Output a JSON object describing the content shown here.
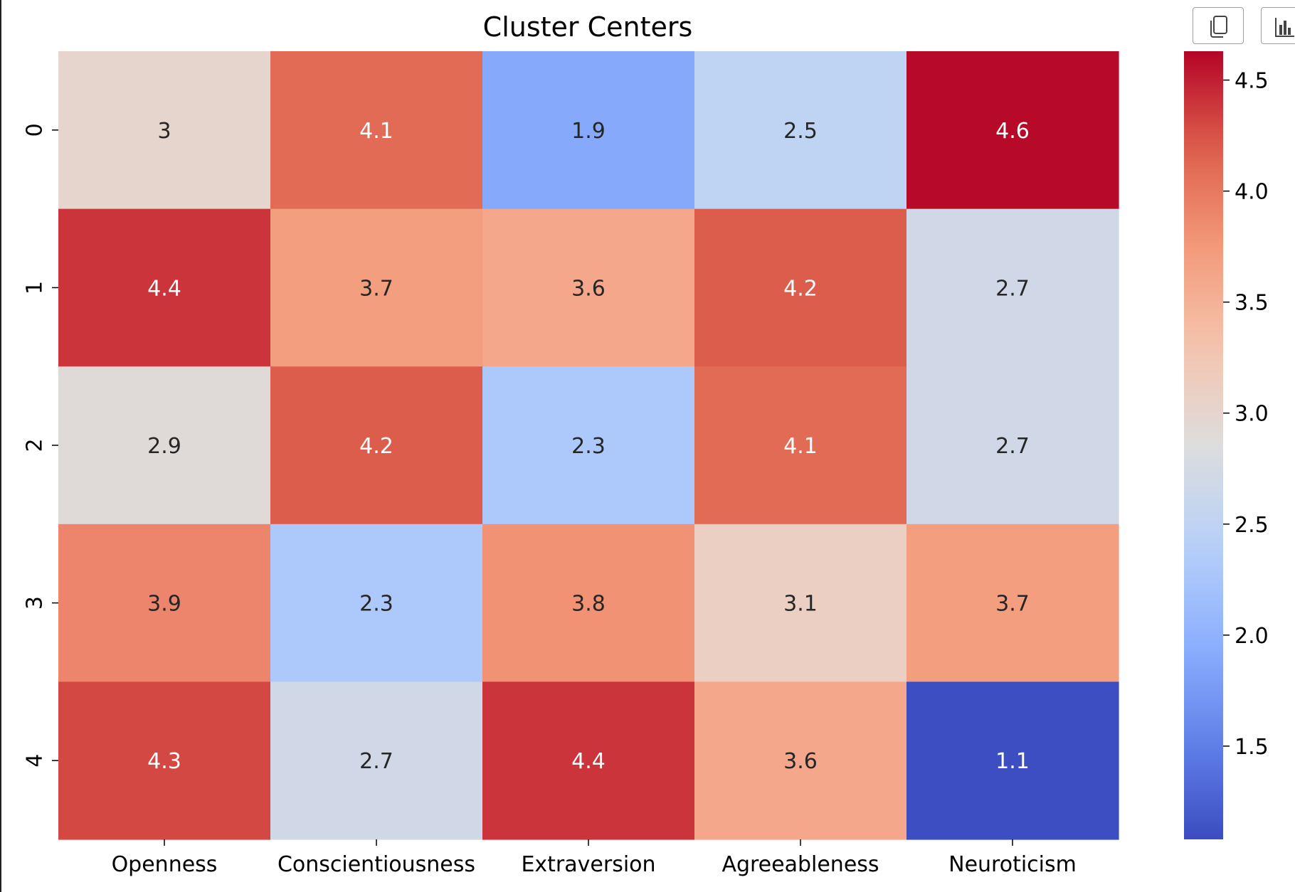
{
  "toolbar": {
    "copy_icon": "copy-icon",
    "chart_icon": "bar-chart-icon"
  },
  "chart_data": {
    "type": "heatmap",
    "title": "Cluster Centers",
    "xlabel": "",
    "ylabel": "",
    "x_categories": [
      "Openness",
      "Conscientiousness",
      "Extraversion",
      "Agreeableness",
      "Neuroticism"
    ],
    "y_categories": [
      "0",
      "1",
      "2",
      "3",
      "4"
    ],
    "values": [
      [
        3.0,
        4.1,
        1.9,
        2.5,
        4.6
      ],
      [
        4.4,
        3.7,
        3.6,
        4.2,
        2.7
      ],
      [
        2.9,
        4.2,
        2.3,
        4.1,
        2.7
      ],
      [
        3.9,
        2.3,
        3.8,
        3.1,
        3.7
      ],
      [
        4.3,
        2.7,
        4.4,
        3.6,
        1.1
      ]
    ],
    "cell_labels": [
      [
        "3",
        "4.1",
        "1.9",
        "2.5",
        "4.6"
      ],
      [
        "4.4",
        "3.7",
        "3.6",
        "4.2",
        "2.7"
      ],
      [
        "2.9",
        "4.2",
        "2.3",
        "4.1",
        "2.7"
      ],
      [
        "3.9",
        "2.3",
        "3.8",
        "3.1",
        "3.7"
      ],
      [
        "4.3",
        "2.7",
        "4.4",
        "3.6",
        "1.1"
      ]
    ],
    "colormap": "coolwarm",
    "colorbar": {
      "range": [
        1.08,
        4.63
      ],
      "ticks": [
        1.5,
        2.0,
        2.5,
        3.0,
        3.5,
        4.0,
        4.5
      ],
      "tick_labels": [
        "1.5",
        "2.0",
        "2.5",
        "3.0",
        "3.5",
        "4.0",
        "4.5"
      ]
    },
    "legend": "colorbar-right",
    "grid": false
  }
}
